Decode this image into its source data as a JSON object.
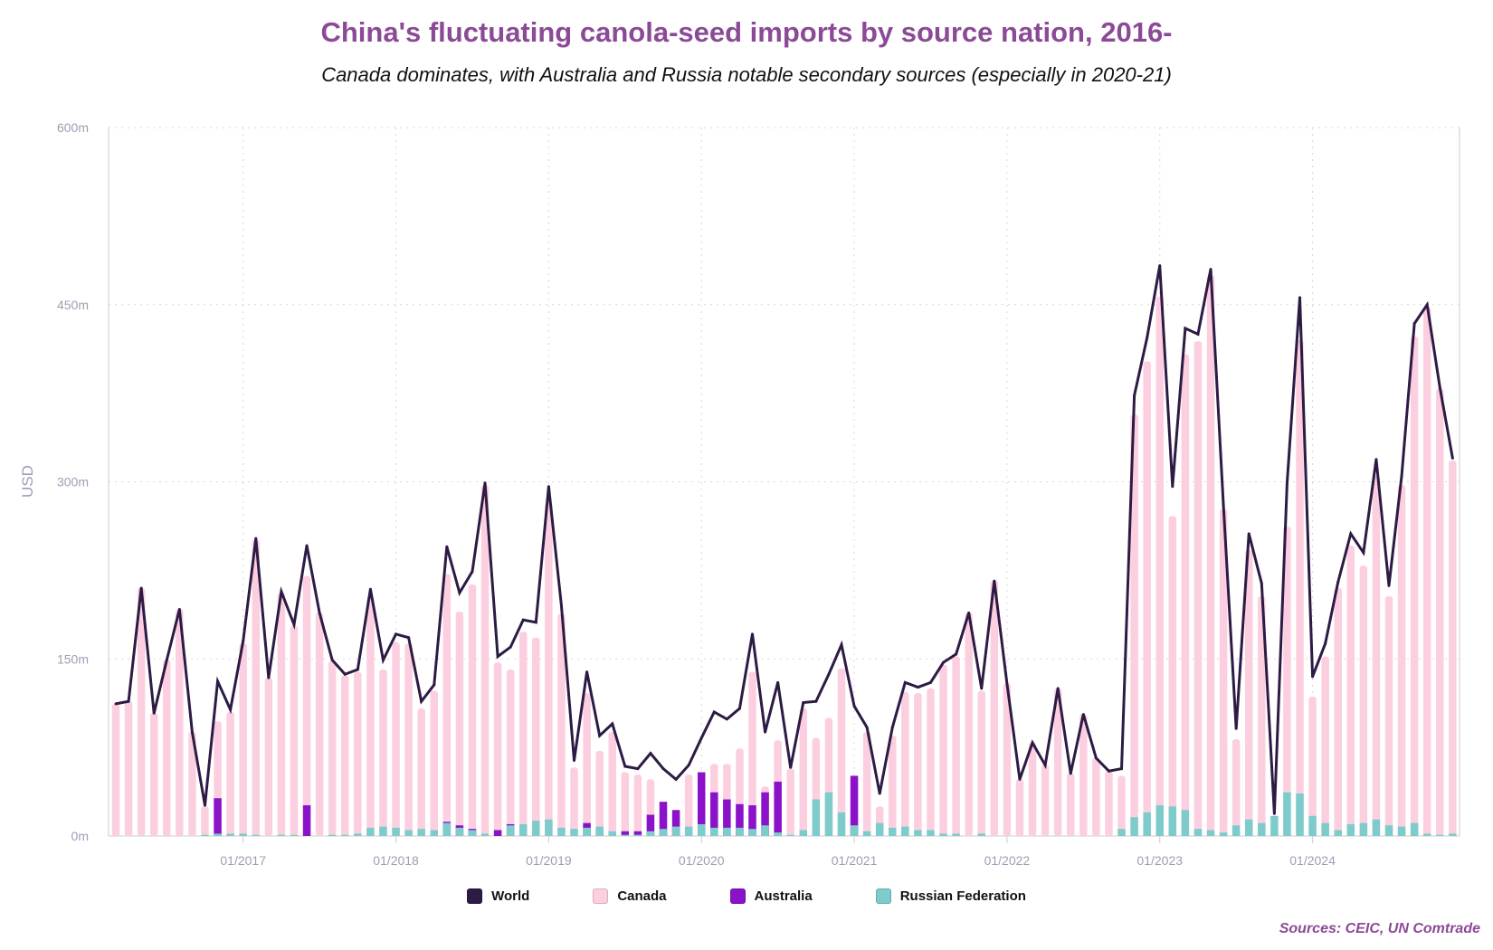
{
  "chart_data": {
    "type": "bar+line",
    "title": "China's fluctuating canola-seed imports by source nation, 2016-",
    "subtitle": "Canada dominates, with Australia and Russia notable secondary sources (especially in 2020-21)",
    "ylabel": "USD",
    "ylim": [
      0,
      600
    ],
    "yticks": [
      {
        "v": 0,
        "label": "0m"
      },
      {
        "v": 150,
        "label": "150m"
      },
      {
        "v": 300,
        "label": "300m"
      },
      {
        "v": 450,
        "label": "450m"
      },
      {
        "v": 600,
        "label": "600m"
      }
    ],
    "x_start": "2016-03",
    "x_end": "2024-12",
    "xticks": [
      "01/2017",
      "01/2018",
      "01/2019",
      "01/2020",
      "01/2021",
      "01/2022",
      "01/2023",
      "01/2024"
    ],
    "grid": true,
    "legend_position": "bottom",
    "series": [
      {
        "name": "World",
        "type": "line",
        "color": "#2d1b45",
        "values": [
          112,
          114,
          210,
          104,
          149,
          192,
          88,
          26,
          131,
          107,
          165,
          252,
          134,
          207,
          179,
          246,
          189,
          149,
          137,
          141,
          209,
          149,
          171,
          168,
          114,
          128,
          245,
          206,
          224,
          299,
          152,
          160,
          183,
          181,
          296,
          195,
          64,
          139,
          85,
          95,
          59,
          57,
          70,
          57,
          48,
          60,
          83,
          105,
          99,
          108,
          171,
          88,
          130,
          58,
          113,
          114,
          137,
          162,
          110,
          92,
          36,
          92,
          130,
          126,
          130,
          147,
          154,
          189,
          125,
          216,
          129,
          48,
          79,
          60,
          125,
          53,
          103,
          66,
          55,
          57,
          373,
          422,
          483,
          296,
          430,
          425,
          480,
          280,
          91,
          256,
          214,
          19,
          299,
          456,
          135,
          163,
          215,
          256,
          240,
          319,
          212,
          305,
          434,
          450,
          380,
          320
        ]
      },
      {
        "name": "Canada",
        "type": "bar",
        "color": "#fccfe0",
        "values": [
          112,
          114,
          210,
          104,
          149,
          192,
          88,
          25,
          97,
          105,
          163,
          251,
          134,
          206,
          178,
          220,
          189,
          148,
          136,
          139,
          202,
          141,
          164,
          163,
          108,
          123,
          222,
          190,
          213,
          297,
          147,
          141,
          173,
          168,
          282,
          188,
          58,
          121,
          72,
          88,
          54,
          52,
          48,
          22,
          18,
          52,
          19,
          61,
          61,
          74,
          139,
          42,
          81,
          57,
          108,
          83,
          100,
          142,
          50,
          88,
          25,
          85,
          122,
          121,
          125,
          145,
          152,
          189,
          123,
          216,
          129,
          48,
          79,
          60,
          125,
          53,
          103,
          66,
          55,
          51,
          357,
          402,
          457,
          271,
          408,
          419,
          475,
          277,
          82,
          242,
          203,
          2,
          262,
          420,
          118,
          152,
          210,
          246,
          229,
          305,
          203,
          297,
          423,
          448,
          379,
          318
        ]
      },
      {
        "name": "Australia",
        "type": "bar",
        "color": "#8a12c9",
        "values": [
          0,
          0,
          0,
          0,
          0,
          0,
          0,
          0,
          32,
          0,
          0,
          0,
          0,
          0,
          0,
          26,
          0,
          0,
          0,
          0,
          0,
          0,
          0,
          0,
          0,
          0,
          12,
          9,
          6,
          0,
          5,
          10,
          0,
          0,
          0,
          0,
          0,
          11,
          5,
          3,
          4,
          4,
          18,
          29,
          22,
          0,
          54,
          37,
          31,
          27,
          26,
          37,
          46,
          0,
          0,
          0,
          0,
          0,
          51,
          0,
          0,
          0,
          0,
          0,
          0,
          0,
          0,
          0,
          0,
          0,
          0,
          0,
          0,
          0,
          0,
          0,
          0,
          0,
          0,
          0,
          0,
          0,
          0,
          0,
          0,
          0,
          0,
          0,
          0,
          0,
          0,
          0,
          0,
          0,
          0,
          0,
          0,
          0,
          0,
          0,
          0,
          0,
          0,
          0,
          0,
          0
        ]
      },
      {
        "name": "Russian Federation",
        "type": "bar",
        "color": "#7ecbcc",
        "values": [
          0,
          0,
          0,
          0,
          0,
          0,
          0,
          1,
          2,
          2,
          2,
          1,
          0,
          1,
          1,
          0,
          0,
          1,
          1,
          2,
          7,
          8,
          7,
          5,
          6,
          5,
          11,
          7,
          5,
          2,
          0,
          9,
          10,
          13,
          14,
          7,
          6,
          7,
          8,
          4,
          1,
          1,
          4,
          6,
          8,
          8,
          10,
          7,
          7,
          7,
          6,
          9,
          3,
          1,
          5,
          31,
          37,
          20,
          9,
          4,
          11,
          7,
          8,
          5,
          5,
          2,
          2,
          0,
          2,
          0,
          0,
          0,
          0,
          0,
          0,
          0,
          0,
          0,
          0,
          6,
          16,
          20,
          26,
          25,
          22,
          6,
          5,
          3,
          9,
          14,
          11,
          17,
          37,
          36,
          17,
          11,
          5,
          10,
          11,
          14,
          9,
          8,
          11,
          2,
          1,
          2
        ]
      }
    ],
    "source": "Sources: CEIC, UN Comtrade"
  }
}
